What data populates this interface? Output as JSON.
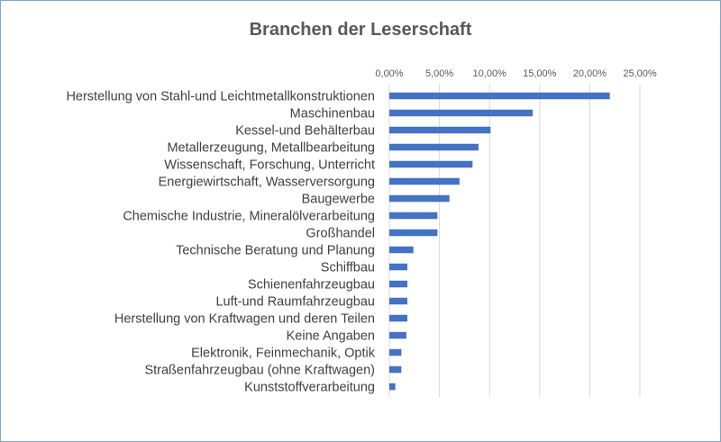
{
  "chart_data": {
    "type": "bar",
    "orientation": "horizontal",
    "title": "Branchen der Leserschaft",
    "categories": [
      "Herstellung von Stahl-und Leichtmetallkonstruktionen",
      "Maschinenbau",
      "Kessel-und Behälterbau",
      "Metallerzeugung, Metallbearbeitung",
      "Wissenschaft, Forschung, Unterricht",
      "Energiewirtschaft, Wasserversorgung",
      "Baugewerbe",
      "Chemische Industrie, Mineralölverarbeitung",
      "Großhandel",
      "Technische Beratung und Planung",
      "Schiffbau",
      "Schienenfahrzeugbau",
      "Luft-und Raumfahrzeugbau",
      "Herstellung von Kraftwagen und deren Teilen",
      "Keine Angaben",
      "Elektronik, Feinmechanik, Optik",
      "Straßenfahrzeugbau (ohne Kraftwagen)",
      "Kunststoffverarbeitung"
    ],
    "values": [
      22.0,
      14.3,
      10.1,
      8.9,
      8.3,
      7.0,
      6.0,
      4.8,
      4.8,
      2.4,
      1.8,
      1.8,
      1.8,
      1.8,
      1.7,
      1.2,
      1.2,
      0.6
    ],
    "xlim": [
      0,
      25
    ],
    "xticks": [
      "0,00%",
      "5,00%",
      "10,00%",
      "15,00%",
      "20,00%",
      "25,00%"
    ],
    "xlabel": "",
    "ylabel": "",
    "grid": "vertical",
    "legend": "none",
    "bar_color": "#4472c4",
    "grid_color": "#d9d9d9"
  }
}
